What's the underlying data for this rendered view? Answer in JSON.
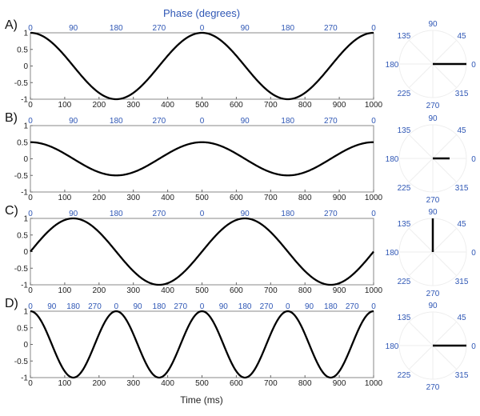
{
  "chart_data": {
    "type": "line",
    "title": "Phase (degrees)",
    "xlabel": "Time (ms)",
    "xlim": [
      0,
      1000
    ],
    "ylim": [
      -1,
      1
    ],
    "x_ticks": [
      0,
      100,
      200,
      300,
      400,
      500,
      600,
      700,
      800,
      900,
      1000
    ],
    "y_ticks": [
      1,
      0.5,
      0,
      -0.5,
      -1
    ],
    "y_tick_labels": [
      "1",
      "0.5",
      "0",
      "-0.5",
      "-1"
    ],
    "polar_tick_labels": [
      "0",
      "45",
      "90",
      "135",
      "180",
      "225",
      "270",
      "315"
    ],
    "line_color": "#000000",
    "phase_label_color": "#2f57b5",
    "panels": [
      {
        "label": "A)",
        "frequency_hz": 2,
        "amplitude": 1,
        "phase_offset_deg": 0,
        "phase_ticks": [
          "0",
          "90",
          "180",
          "270",
          "0",
          "90",
          "180",
          "270",
          "0"
        ],
        "vector": {
          "angle_deg": 0,
          "length": 1
        }
      },
      {
        "label": "B)",
        "frequency_hz": 2,
        "amplitude": 0.5,
        "phase_offset_deg": 0,
        "phase_ticks": [
          "0",
          "90",
          "180",
          "270",
          "0",
          "90",
          "180",
          "270",
          "0"
        ],
        "vector": {
          "angle_deg": 0,
          "length": 0.5
        }
      },
      {
        "label": "C)",
        "frequency_hz": 2,
        "amplitude": 1,
        "phase_offset_deg": 90,
        "phase_ticks": [
          "0",
          "90",
          "180",
          "270",
          "0",
          "90",
          "180",
          "270",
          "0"
        ],
        "vector": {
          "angle_deg": 90,
          "length": 1
        }
      },
      {
        "label": "D)",
        "frequency_hz": 4,
        "amplitude": 1,
        "phase_offset_deg": 0,
        "phase_ticks": [
          "0",
          "90",
          "180",
          "270",
          "0",
          "90",
          "180",
          "270",
          "0",
          "90",
          "180",
          "270",
          "0",
          "90",
          "180",
          "270",
          "0"
        ],
        "vector": {
          "angle_deg": 0,
          "length": 1
        }
      }
    ]
  }
}
